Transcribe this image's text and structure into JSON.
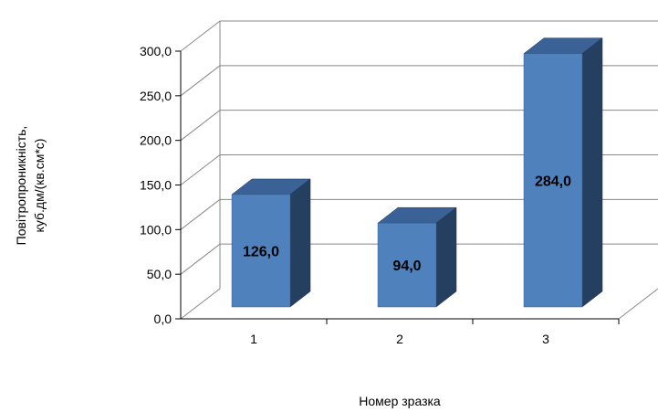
{
  "chart_data": {
    "type": "bar",
    "title": "",
    "xlabel": "Номер зразка",
    "ylabel": "Повітропроникність, куб.дм/(кв.см*с)",
    "ylabel_lines": [
      "Повітропроникність,",
      "куб.дм/(кв.см*с)"
    ],
    "categories": [
      "1",
      "2",
      "3"
    ],
    "values": [
      126.0,
      94.0,
      284.0
    ],
    "data_labels": [
      "126,0",
      "94,0",
      "284,0"
    ],
    "ylim": [
      0,
      300
    ],
    "yticks": [
      0,
      50,
      100,
      150,
      200,
      250,
      300
    ],
    "ytick_labels": [
      "0,0",
      "50,0",
      "100,0",
      "150,0",
      "200,0",
      "250,0",
      "300,0"
    ],
    "grid": true,
    "legend": "none",
    "three_d": true,
    "colors": {
      "bar_front": "#4f81bd",
      "bar_top": "#3a6296",
      "bar_side": "#243f60",
      "grid": "#888888",
      "axis": "#000000"
    }
  }
}
